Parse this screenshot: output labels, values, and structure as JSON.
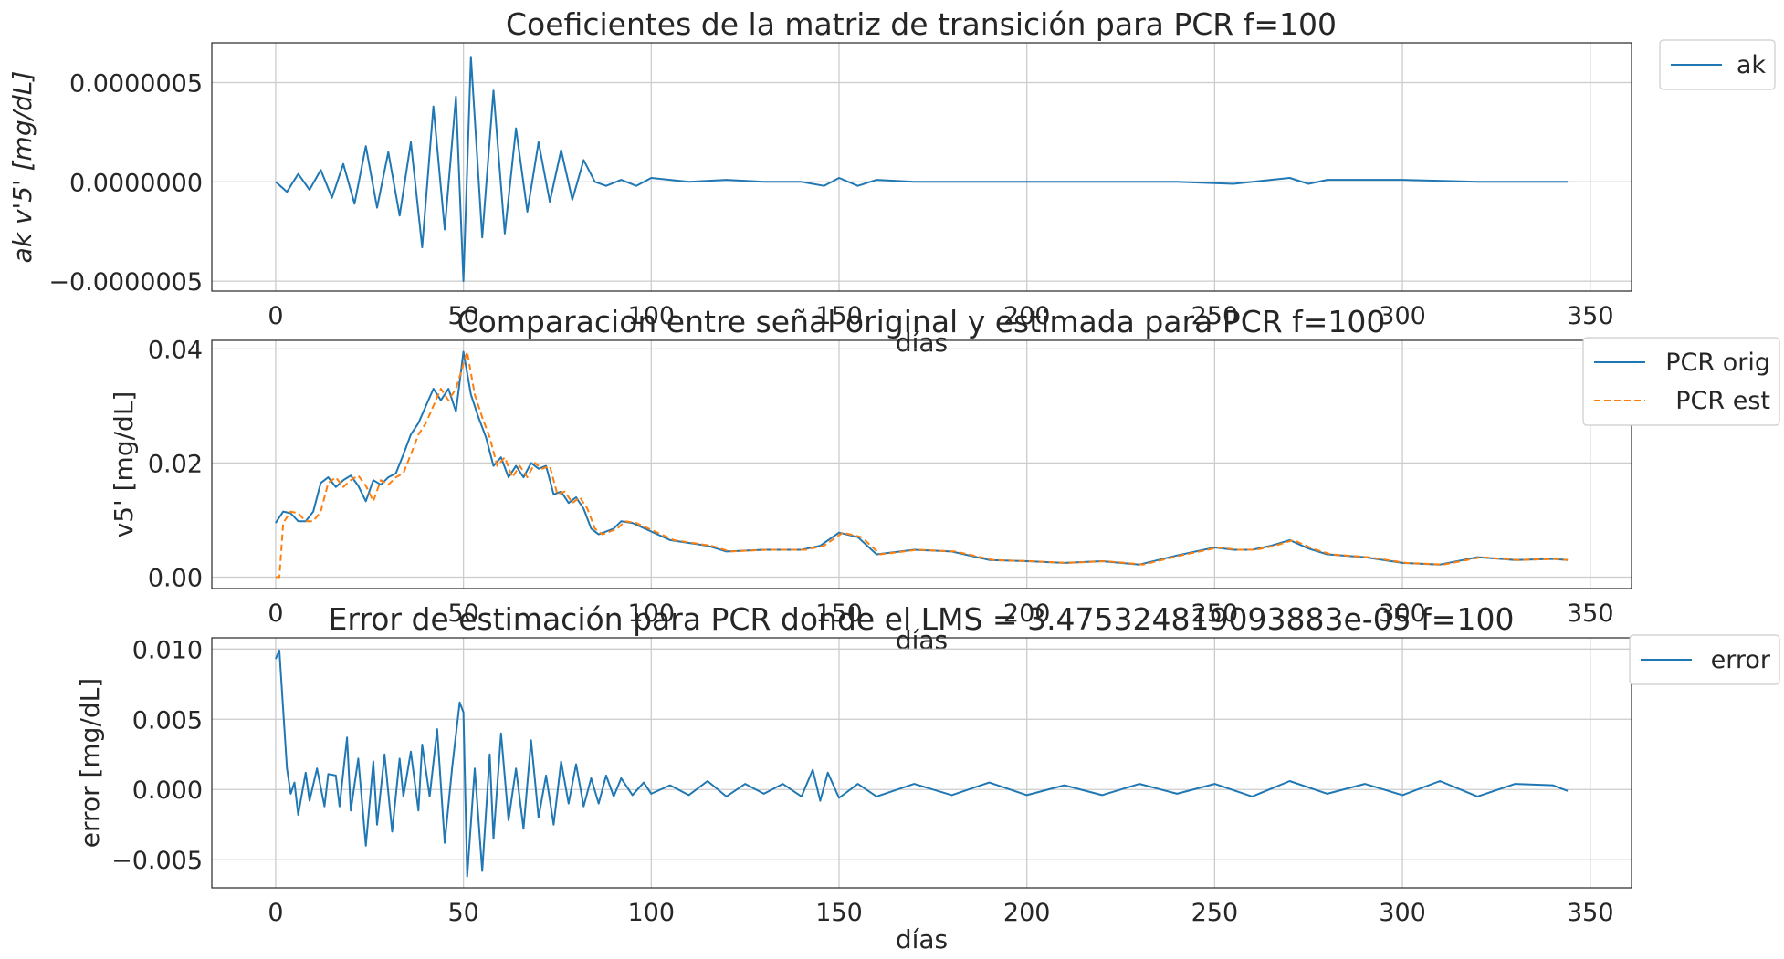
{
  "chart_data": [
    {
      "type": "line",
      "title": "Coeficientes de la matriz de transición para PCR f=100",
      "xlabel": "días",
      "ylabel": "ak v'5' [mg/dL]",
      "xlim": [
        -17,
        361
      ],
      "ylim": [
        -5.5e-07,
        7e-07
      ],
      "xticks": [
        0,
        50,
        100,
        150,
        200,
        250,
        300,
        350
      ],
      "yticks": [
        -5e-07,
        0,
        5e-07
      ],
      "ytick_labels": [
        "−0.0000005",
        "0.0000000",
        "0.0000005"
      ],
      "grid": true,
      "legend": "outside-top-right",
      "series": [
        {
          "name": "ak",
          "color": "#1f77b4",
          "style": "solid",
          "x": [
            0,
            3,
            6,
            9,
            12,
            15,
            18,
            21,
            24,
            27,
            30,
            33,
            36,
            39,
            42,
            45,
            48,
            50,
            52,
            55,
            58,
            61,
            64,
            67,
            70,
            73,
            76,
            79,
            82,
            85,
            88,
            92,
            96,
            100,
            110,
            120,
            130,
            140,
            146,
            150,
            155,
            160,
            170,
            180,
            190,
            200,
            220,
            240,
            255,
            265,
            270,
            275,
            280,
            300,
            320,
            344
          ],
          "y": [
            0,
            -5e-08,
            4e-08,
            -4e-08,
            6e-08,
            -8e-08,
            9e-08,
            -1.1e-07,
            1.8e-07,
            -1.3e-07,
            1.5e-07,
            -1.7e-07,
            2e-07,
            -3.3e-07,
            3.8e-07,
            -2.4e-07,
            4.3e-07,
            -5e-07,
            6.3e-07,
            -2.8e-07,
            4.6e-07,
            -2.6e-07,
            2.7e-07,
            -1.5e-07,
            2e-07,
            -1e-07,
            1.6e-07,
            -9e-08,
            1.1e-07,
            0,
            -2e-08,
            1e-08,
            -2e-08,
            2e-08,
            0,
            1e-08,
            0,
            0,
            -2e-08,
            2e-08,
            -2e-08,
            1e-08,
            0,
            0,
            0,
            0,
            0,
            0,
            -1e-08,
            1e-08,
            2e-08,
            -1e-08,
            1e-08,
            1e-08,
            0,
            0
          ]
        }
      ]
    },
    {
      "type": "line",
      "title": "Comparacion entre señal original y estimada para PCR f=100",
      "xlabel": "días",
      "ylabel": "v5' [mg/dL]",
      "xlim": [
        -17,
        361
      ],
      "ylim": [
        -0.002,
        0.0415
      ],
      "xticks": [
        0,
        50,
        100,
        150,
        200,
        250,
        300,
        350
      ],
      "yticks": [
        0.0,
        0.02,
        0.04
      ],
      "ytick_labels": [
        "0.00",
        "0.02",
        "0.04"
      ],
      "grid": true,
      "legend": "outside-top-right",
      "series": [
        {
          "name": "PCR orig",
          "color": "#1f77b4",
          "style": "solid",
          "x": [
            0,
            2,
            4,
            6,
            8,
            10,
            12,
            14,
            16,
            18,
            20,
            22,
            24,
            26,
            28,
            30,
            32,
            34,
            36,
            38,
            40,
            42,
            44,
            46,
            48,
            50,
            52,
            54,
            56,
            58,
            60,
            62,
            64,
            66,
            68,
            70,
            72,
            74,
            76,
            78,
            80,
            82,
            84,
            86,
            88,
            90,
            92,
            95,
            100,
            105,
            110,
            115,
            120,
            130,
            140,
            145,
            150,
            155,
            160,
            170,
            180,
            190,
            200,
            210,
            220,
            230,
            240,
            250,
            255,
            260,
            265,
            270,
            275,
            280,
            290,
            300,
            310,
            320,
            330,
            340,
            344
          ],
          "y": [
            0.0095,
            0.0115,
            0.0112,
            0.0098,
            0.0098,
            0.0115,
            0.0165,
            0.0175,
            0.0158,
            0.017,
            0.0178,
            0.016,
            0.0133,
            0.017,
            0.0162,
            0.0175,
            0.0182,
            0.0215,
            0.025,
            0.027,
            0.03,
            0.033,
            0.031,
            0.033,
            0.029,
            0.0395,
            0.032,
            0.028,
            0.0245,
            0.0195,
            0.021,
            0.0175,
            0.0195,
            0.0175,
            0.02,
            0.019,
            0.0195,
            0.0145,
            0.015,
            0.013,
            0.014,
            0.012,
            0.0085,
            0.0075,
            0.008,
            0.0085,
            0.0098,
            0.0095,
            0.008,
            0.0065,
            0.006,
            0.0055,
            0.0045,
            0.0048,
            0.0048,
            0.0055,
            0.0078,
            0.007,
            0.004,
            0.0048,
            0.0045,
            0.003,
            0.0028,
            0.0025,
            0.0028,
            0.0022,
            0.0038,
            0.0052,
            0.0048,
            0.0048,
            0.0055,
            0.0065,
            0.005,
            0.004,
            0.0035,
            0.0025,
            0.0022,
            0.0035,
            0.003,
            0.0032,
            0.003
          ]
        },
        {
          "name": "PCR est",
          "color": "#ff7f0e",
          "style": "dashed",
          "x": [
            0,
            1,
            2,
            4,
            6,
            8,
            10,
            12,
            14,
            16,
            18,
            20,
            22,
            24,
            26,
            28,
            30,
            32,
            34,
            36,
            38,
            40,
            42,
            44,
            46,
            48,
            51,
            53,
            55,
            57,
            59,
            61,
            63,
            65,
            67,
            69,
            71,
            73,
            75,
            77,
            79,
            81,
            83,
            85,
            87,
            89,
            91,
            93,
            96,
            101,
            106,
            111,
            116,
            121,
            131,
            141,
            146,
            151,
            156,
            161,
            171,
            181,
            191,
            201,
            211,
            221,
            231,
            241,
            251,
            256,
            261,
            266,
            271,
            276,
            281,
            291,
            301,
            311,
            321,
            331,
            341,
            344
          ],
          "y": [
            0.0,
            0.0,
            0.0095,
            0.0115,
            0.0112,
            0.0098,
            0.0098,
            0.0115,
            0.0165,
            0.0175,
            0.0158,
            0.017,
            0.0178,
            0.016,
            0.0133,
            0.017,
            0.0162,
            0.0175,
            0.0182,
            0.0215,
            0.025,
            0.027,
            0.03,
            0.033,
            0.031,
            0.033,
            0.0395,
            0.032,
            0.028,
            0.0245,
            0.0195,
            0.021,
            0.0175,
            0.0195,
            0.0175,
            0.02,
            0.019,
            0.0195,
            0.0145,
            0.015,
            0.013,
            0.014,
            0.012,
            0.0085,
            0.0075,
            0.008,
            0.0085,
            0.0098,
            0.0095,
            0.008,
            0.0065,
            0.006,
            0.0055,
            0.0045,
            0.0048,
            0.0048,
            0.0055,
            0.0078,
            0.007,
            0.004,
            0.0048,
            0.0045,
            0.003,
            0.0028,
            0.0025,
            0.0028,
            0.0022,
            0.0038,
            0.0052,
            0.0048,
            0.0048,
            0.0055,
            0.0065,
            0.005,
            0.004,
            0.0035,
            0.0025,
            0.0022,
            0.0035,
            0.003,
            0.0032,
            0.003
          ]
        }
      ]
    },
    {
      "type": "line",
      "title": "Error de estimación para PCR donde el LMS = 3.475324819093883e-05 f=100",
      "xlabel": "días",
      "ylabel": "error  [mg/dL]",
      "xlim": [
        -17,
        361
      ],
      "ylim": [
        -0.007,
        0.0108
      ],
      "xticks": [
        0,
        50,
        100,
        150,
        200,
        250,
        300,
        350
      ],
      "yticks": [
        -0.005,
        0.0,
        0.005,
        0.01
      ],
      "ytick_labels": [
        "−0.005",
        "0.000",
        "0.005",
        "0.010"
      ],
      "grid": true,
      "legend": "outside-top-right",
      "series": [
        {
          "name": "error",
          "color": "#1f77b4",
          "style": "solid",
          "x": [
            0,
            1,
            3,
            4,
            5,
            6,
            8,
            9,
            11,
            13,
            14,
            16,
            17,
            19,
            20,
            22,
            24,
            26,
            27,
            29,
            31,
            33,
            34,
            36,
            38,
            39,
            41,
            43,
            45,
            47,
            49,
            50,
            51,
            53,
            55,
            57,
            58,
            60,
            62,
            64,
            66,
            68,
            70,
            72,
            74,
            76,
            78,
            80,
            82,
            84,
            86,
            88,
            90,
            92,
            95,
            98,
            100,
            105,
            110,
            115,
            120,
            125,
            130,
            135,
            140,
            143,
            145,
            147,
            150,
            155,
            160,
            170,
            180,
            190,
            200,
            210,
            220,
            230,
            240,
            250,
            260,
            270,
            280,
            290,
            300,
            310,
            320,
            330,
            340,
            344
          ],
          "y": [
            0.0093,
            0.0099,
            0.0015,
            -0.0003,
            0.0005,
            -0.0018,
            0.0012,
            -0.0008,
            0.0015,
            -0.0012,
            0.0011,
            0.001,
            -0.0012,
            0.0037,
            -0.0015,
            0.0022,
            -0.004,
            0.002,
            -0.0025,
            0.0025,
            -0.003,
            0.0022,
            -0.0005,
            0.0027,
            -0.0015,
            0.0032,
            -0.0005,
            0.0043,
            -0.0038,
            0.0016,
            0.0062,
            0.0055,
            -0.0062,
            0.0015,
            -0.0058,
            0.0025,
            -0.0035,
            0.004,
            -0.0022,
            0.0015,
            -0.0028,
            0.0035,
            -0.002,
            0.001,
            -0.0025,
            0.002,
            -0.001,
            0.0018,
            -0.0012,
            0.0008,
            -0.001,
            0.001,
            -0.0005,
            0.0008,
            -0.0004,
            0.0005,
            -0.0003,
            0.0003,
            -0.0004,
            0.0006,
            -0.0005,
            0.0004,
            -0.0003,
            0.0004,
            -0.0005,
            0.0014,
            -0.0008,
            0.0012,
            -0.0006,
            0.0004,
            -0.0005,
            0.0004,
            -0.0004,
            0.0005,
            -0.0004,
            0.0003,
            -0.0004,
            0.0004,
            -0.0003,
            0.0004,
            -0.0005,
            0.0006,
            -0.0003,
            0.0004,
            -0.0004,
            0.0006,
            -0.0005,
            0.0004,
            0.0003,
            -0.0001
          ]
        }
      ]
    }
  ]
}
